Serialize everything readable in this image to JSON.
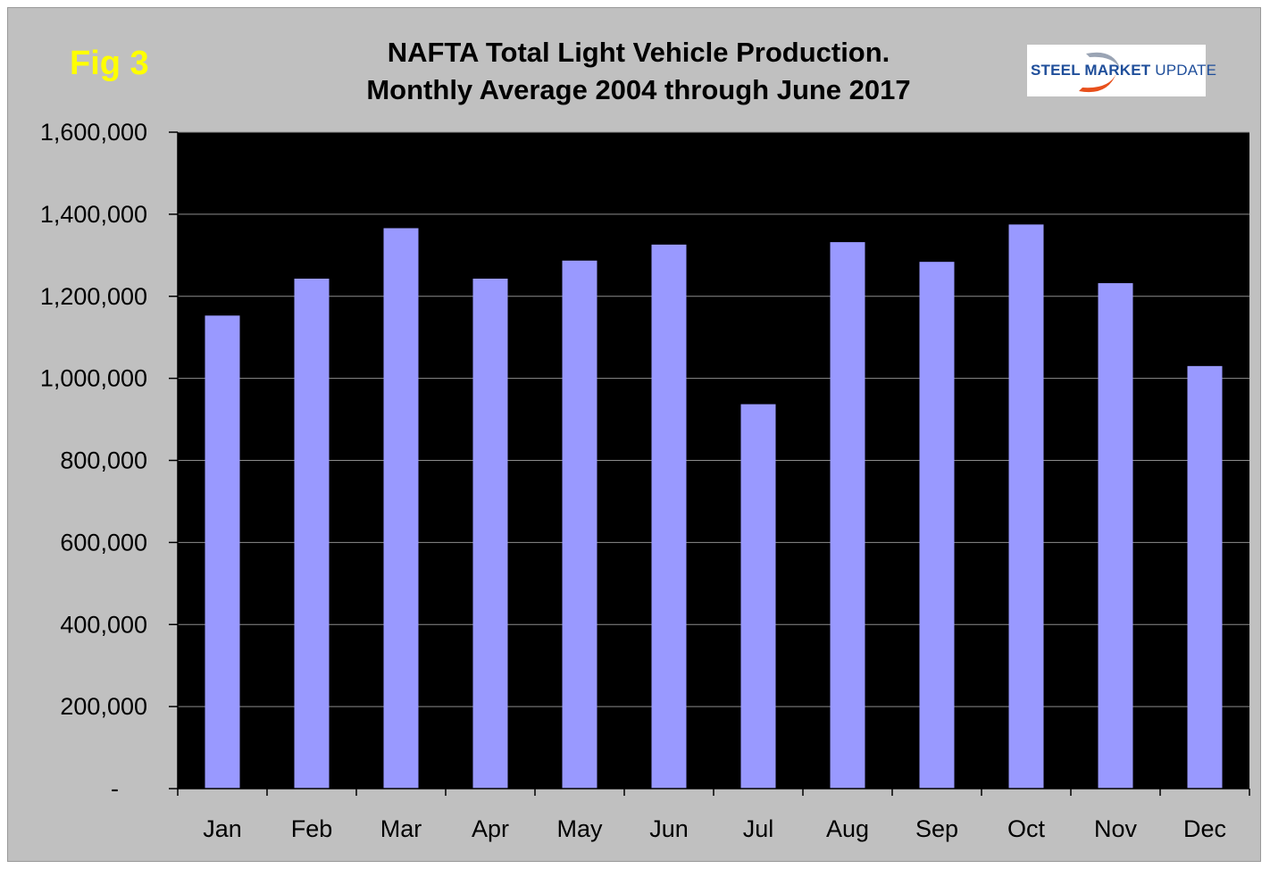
{
  "header": {
    "fig_label": "Fig 3",
    "title_line1": "NAFTA Total Light Vehicle Production.",
    "title_line2": "Monthly Average 2004 through June 2017"
  },
  "logo": {
    "text_bold": "STEEL MARKET",
    "text_light": " UPDATE",
    "colors": {
      "text": "#1f4e9a",
      "swoosh": "#e8501c"
    }
  },
  "colors": {
    "background": "#c0c0c0",
    "plot_area": "#000000",
    "bar": "#9999ff",
    "gridline": "#8c8c8c",
    "fig_label": "#ffff00"
  },
  "chart_data": {
    "type": "bar",
    "title": "NAFTA Total Light Vehicle Production. Monthly Average 2004 through June 2017",
    "categories": [
      "Jan",
      "Feb",
      "Mar",
      "Apr",
      "May",
      "Jun",
      "Jul",
      "Aug",
      "Sep",
      "Oct",
      "Nov",
      "Dec"
    ],
    "values": [
      1153000,
      1243000,
      1366000,
      1243000,
      1287000,
      1326000,
      937000,
      1332000,
      1284000,
      1375000,
      1232000,
      1030000
    ],
    "ylim": [
      0,
      1600000
    ],
    "yticks": [
      0,
      200000,
      400000,
      600000,
      800000,
      1000000,
      1200000,
      1400000,
      1600000
    ],
    "ytick_labels": [
      "-",
      "200,000",
      "400,000",
      "600,000",
      "800,000",
      "1,000,000",
      "1,200,000",
      "1,400,000",
      "1,600,000"
    ],
    "xlabel": "",
    "ylabel": "",
    "grid": true,
    "legend": "none"
  }
}
